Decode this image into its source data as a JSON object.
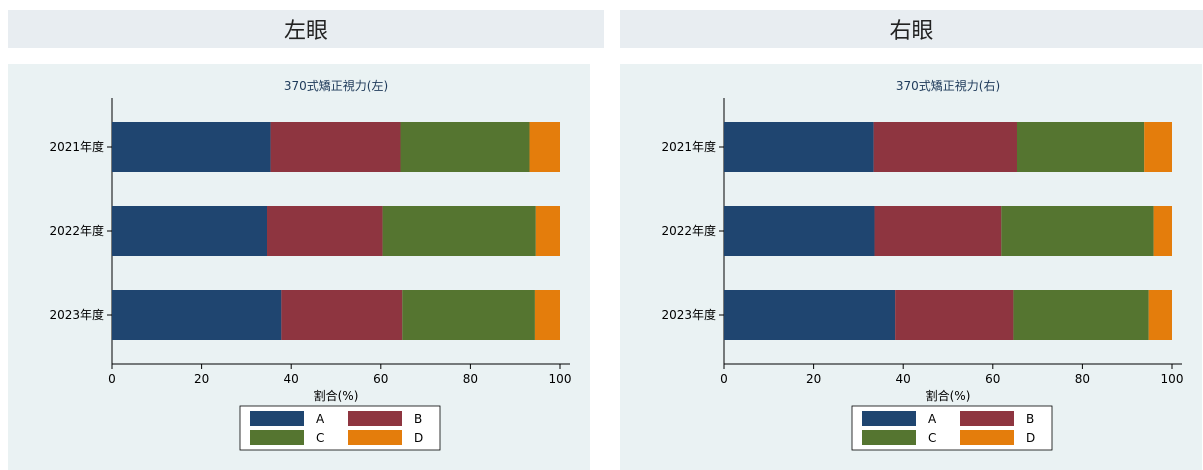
{
  "panels": [
    {
      "header": "左眼"
    },
    {
      "header": "右眼"
    }
  ],
  "colors": {
    "A": "#1f4570",
    "B": "#8e3540",
    "C": "#557530",
    "D": "#e47d0c"
  },
  "chart_data": [
    {
      "type": "bar",
      "orientation": "horizontal",
      "stacked": true,
      "title": "370式矯正視力(左)",
      "xlabel": "割合(%)",
      "ylabel": "",
      "xlim": [
        0,
        100
      ],
      "xticks": [
        0,
        20,
        40,
        60,
        80,
        100
      ],
      "categories": [
        "2021年度",
        "2022年度",
        "2023年度"
      ],
      "series": [
        {
          "name": "A",
          "values": [
            35.4,
            34.6,
            37.8
          ]
        },
        {
          "name": "B",
          "values": [
            29.0,
            25.8,
            27.0
          ]
        },
        {
          "name": "C",
          "values": [
            28.8,
            34.2,
            29.6
          ]
        },
        {
          "name": "D",
          "values": [
            6.8,
            5.4,
            5.6
          ]
        }
      ],
      "legend": "bottom",
      "grid": false
    },
    {
      "type": "bar",
      "orientation": "horizontal",
      "stacked": true,
      "title": "370式矯正視力(右)",
      "xlabel": "割合(%)",
      "ylabel": "",
      "xlim": [
        0,
        100
      ],
      "xticks": [
        0,
        20,
        40,
        60,
        80,
        100
      ],
      "categories": [
        "2021年度",
        "2022年度",
        "2023年度"
      ],
      "series": [
        {
          "name": "A",
          "values": [
            33.4,
            33.6,
            38.2
          ]
        },
        {
          "name": "B",
          "values": [
            32.0,
            28.3,
            26.4
          ]
        },
        {
          "name": "C",
          "values": [
            28.4,
            34.0,
            30.2
          ]
        },
        {
          "name": "D",
          "values": [
            6.2,
            4.1,
            5.2
          ]
        }
      ],
      "legend": "bottom",
      "grid": false
    }
  ]
}
